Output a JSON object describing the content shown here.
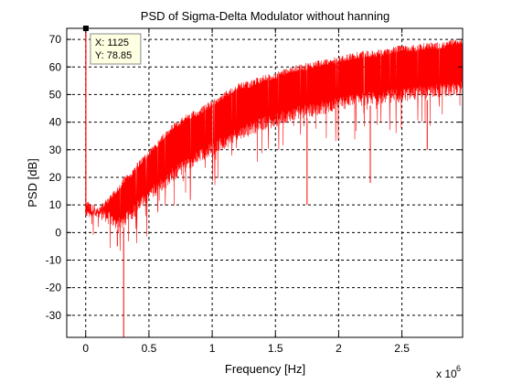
{
  "chart_data": {
    "type": "line",
    "title": "PSD of Sigma-Delta Modulator without hanning",
    "xlabel": "Frequency [Hz]",
    "ylabel": "PSD [dB]",
    "x_exponent_label": "x 10",
    "x_exponent_power": "6",
    "xlim": [
      -150000,
      2980000
    ],
    "ylim": [
      -38,
      74
    ],
    "xticks": [
      0,
      500000,
      1000000,
      1500000,
      2000000,
      2500000
    ],
    "xtick_labels": [
      "0",
      "0.5",
      "1",
      "1.5",
      "2",
      "2.5"
    ],
    "yticks": [
      -30,
      -20,
      -10,
      0,
      10,
      20,
      30,
      40,
      50,
      60,
      70
    ],
    "ytick_labels": [
      "-30",
      "-20",
      "-10",
      "0",
      "10",
      "20",
      "30",
      "40",
      "50",
      "60",
      "70"
    ],
    "grid": true,
    "line_color": "#ff0000",
    "series": [
      {
        "x": [
          0,
          50000,
          100000,
          150000,
          200000,
          250000,
          300000,
          350000,
          400000,
          500000,
          600000,
          700000,
          800000,
          900000,
          1000000,
          1100000,
          1200000,
          1300000,
          1400000,
          1500000,
          1600000,
          1700000,
          1800000,
          1900000,
          2000000,
          2100000,
          2200000,
          2300000,
          2400000,
          2500000,
          2600000,
          2700000,
          2800000,
          2900000,
          2980000
        ],
        "upper": [
          8,
          8,
          9,
          12,
          14,
          17,
          20,
          22,
          25,
          30,
          35,
          40,
          43,
          45,
          48,
          51,
          54,
          55,
          57,
          58,
          60,
          61,
          62,
          63,
          64,
          65,
          66,
          66,
          67,
          68,
          68,
          69,
          69,
          70,
          70
        ],
        "lower": [
          7,
          6,
          5,
          4,
          2,
          1,
          2,
          4,
          6,
          11,
          15,
          19,
          22,
          25,
          28,
          30,
          33,
          35,
          37,
          38,
          40,
          41,
          42,
          43,
          44,
          45,
          46,
          46,
          47,
          47,
          48,
          48,
          49,
          49,
          50
        ],
        "dips": [
          {
            "x": 300000,
            "y": -38
          },
          {
            "x": 250000,
            "y": -5
          },
          {
            "x": 1750000,
            "y": 10
          },
          {
            "x": 2250000,
            "y": 18
          },
          {
            "x": 2700000,
            "y": 30
          }
        ],
        "peak": {
          "x": 1125,
          "y": 78.85
        }
      }
    ],
    "datatip": {
      "x_label": "X: 1125",
      "y_label": "Y: 78.85"
    }
  }
}
